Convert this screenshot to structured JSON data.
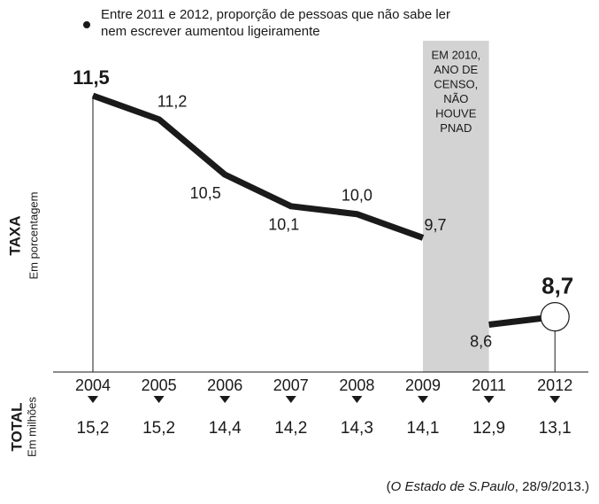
{
  "chart_data": {
    "type": "line",
    "note": [
      "Entre 2011 e 2012, proporção de pessoas que não sabe ler",
      "nem escrever aumentou ligeiramente"
    ],
    "y_label": "TAXA",
    "y_sublabel": "Em porcentagem",
    "categories": [
      "2004",
      "2005",
      "2006",
      "2007",
      "2008",
      "2009",
      "2011",
      "2012"
    ],
    "series": [
      {
        "name": "TAXA",
        "color": "#1a1a1a",
        "values": [
          11.5,
          11.2,
          10.5,
          10.1,
          10.0,
          9.7,
          8.6,
          8.7
        ],
        "value_labels": [
          "11,5",
          "11,2",
          "10,5",
          "10,1",
          "10,0",
          "9,7",
          "8,6",
          "8,7"
        ]
      }
    ],
    "ylim": [
      8,
      11.5
    ],
    "band": {
      "from": "2009",
      "to": "2011",
      "color": "#d3d3d3",
      "lines": [
        "EM 2010,",
        "ANO DE",
        "CENSO,",
        "NÃO",
        "HOUVE",
        "PNAD"
      ]
    },
    "total": {
      "label": "TOTAL",
      "sublabel": "Em milhões",
      "values": [
        15.2,
        15.2,
        14.4,
        14.2,
        14.3,
        14.1,
        12.9,
        13.1
      ],
      "value_labels": [
        "15,2",
        "15,2",
        "14,4",
        "14,2",
        "14,3",
        "14,1",
        "12,9",
        "13,1"
      ]
    },
    "source": {
      "open": "(",
      "italic": "O Estado de S.Paulo",
      "rest": ", 28/9/2013.)"
    }
  }
}
